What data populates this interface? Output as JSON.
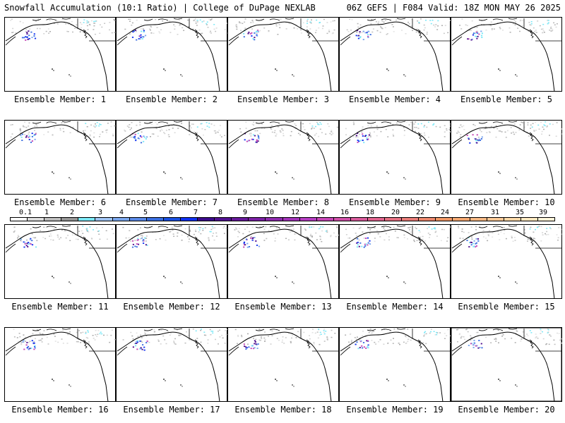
{
  "header": {
    "title_left": "Snowfall Accumulation (10:1 Ratio) | College of DuPage NEXLAB",
    "title_right": "06Z GEFS | F084 Valid: 18Z MON MAY 26 2025"
  },
  "members": [
    "Ensemble Member: 1",
    "Ensemble Member: 2",
    "Ensemble Member: 3",
    "Ensemble Member: 4",
    "Ensemble Member: 5",
    "Ensemble Member: 6",
    "Ensemble Member: 7",
    "Ensemble Member: 8",
    "Ensemble Member: 9",
    "Ensemble Member: 10",
    "Ensemble Member: 11",
    "Ensemble Member: 12",
    "Ensemble Member: 13",
    "Ensemble Member: 14",
    "Ensemble Member: 15",
    "Ensemble Member: 16",
    "Ensemble Member: 17",
    "Ensemble Member: 18",
    "Ensemble Member: 19",
    "Ensemble Member: 20"
  ],
  "colorbar": {
    "ticks": [
      "0.1",
      "1",
      "2",
      "3",
      "4",
      "5",
      "6",
      "7",
      "8",
      "9",
      "10",
      "12",
      "14",
      "16",
      "18",
      "20",
      "22",
      "24",
      "27",
      "31",
      "35",
      "39"
    ],
    "colors": [
      "#ffffff",
      "#dcdcdc",
      "#bdbdbd",
      "#969696",
      "#7be8f7",
      "#9fc3f2",
      "#7aa6ec",
      "#5a89e6",
      "#3a6ee0",
      "#1a4fe0",
      "#1030f0",
      "#3b0a8a",
      "#50108f",
      "#661899",
      "#7a20a3",
      "#8e2aad",
      "#a233b8",
      "#b53dc2",
      "#c646b5",
      "#d050a8",
      "#d85a9b",
      "#e0648e",
      "#e47082",
      "#e87c78",
      "#ec886e",
      "#f09866",
      "#f4a872",
      "#f7b884",
      "#fac896",
      "#fcd8a8",
      "#fee8c0",
      "#fff4d8"
    ]
  }
}
